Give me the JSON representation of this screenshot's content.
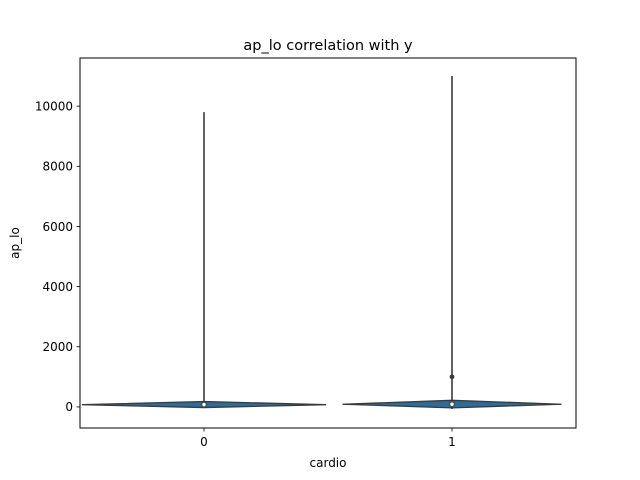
{
  "chart_data": {
    "type": "violin",
    "title": "ap_lo correlation with y",
    "xlabel": "cardio",
    "ylabel": "ap_lo",
    "categories": [
      "0",
      "1"
    ],
    "ylim": [
      -700,
      11600
    ],
    "yticks": [
      0,
      2000,
      4000,
      6000,
      8000,
      10000
    ],
    "violin_color": "#2c6b9a",
    "line_color": "#3a3a3a",
    "violins": [
      {
        "category": "0",
        "min": 0,
        "max": 9800,
        "q1": 70,
        "median": 80,
        "q3": 90,
        "kde_peak": 75,
        "kde_low": -20,
        "kde_high": 180,
        "half_width": 0.49
      },
      {
        "category": "1",
        "min": -70,
        "max": 11000,
        "q1": 80,
        "median": 90,
        "q3": 100,
        "kde_peak": 90,
        "kde_low": -30,
        "kde_high": 220,
        "half_width": 0.44,
        "whisker_dot": 1000
      }
    ]
  }
}
